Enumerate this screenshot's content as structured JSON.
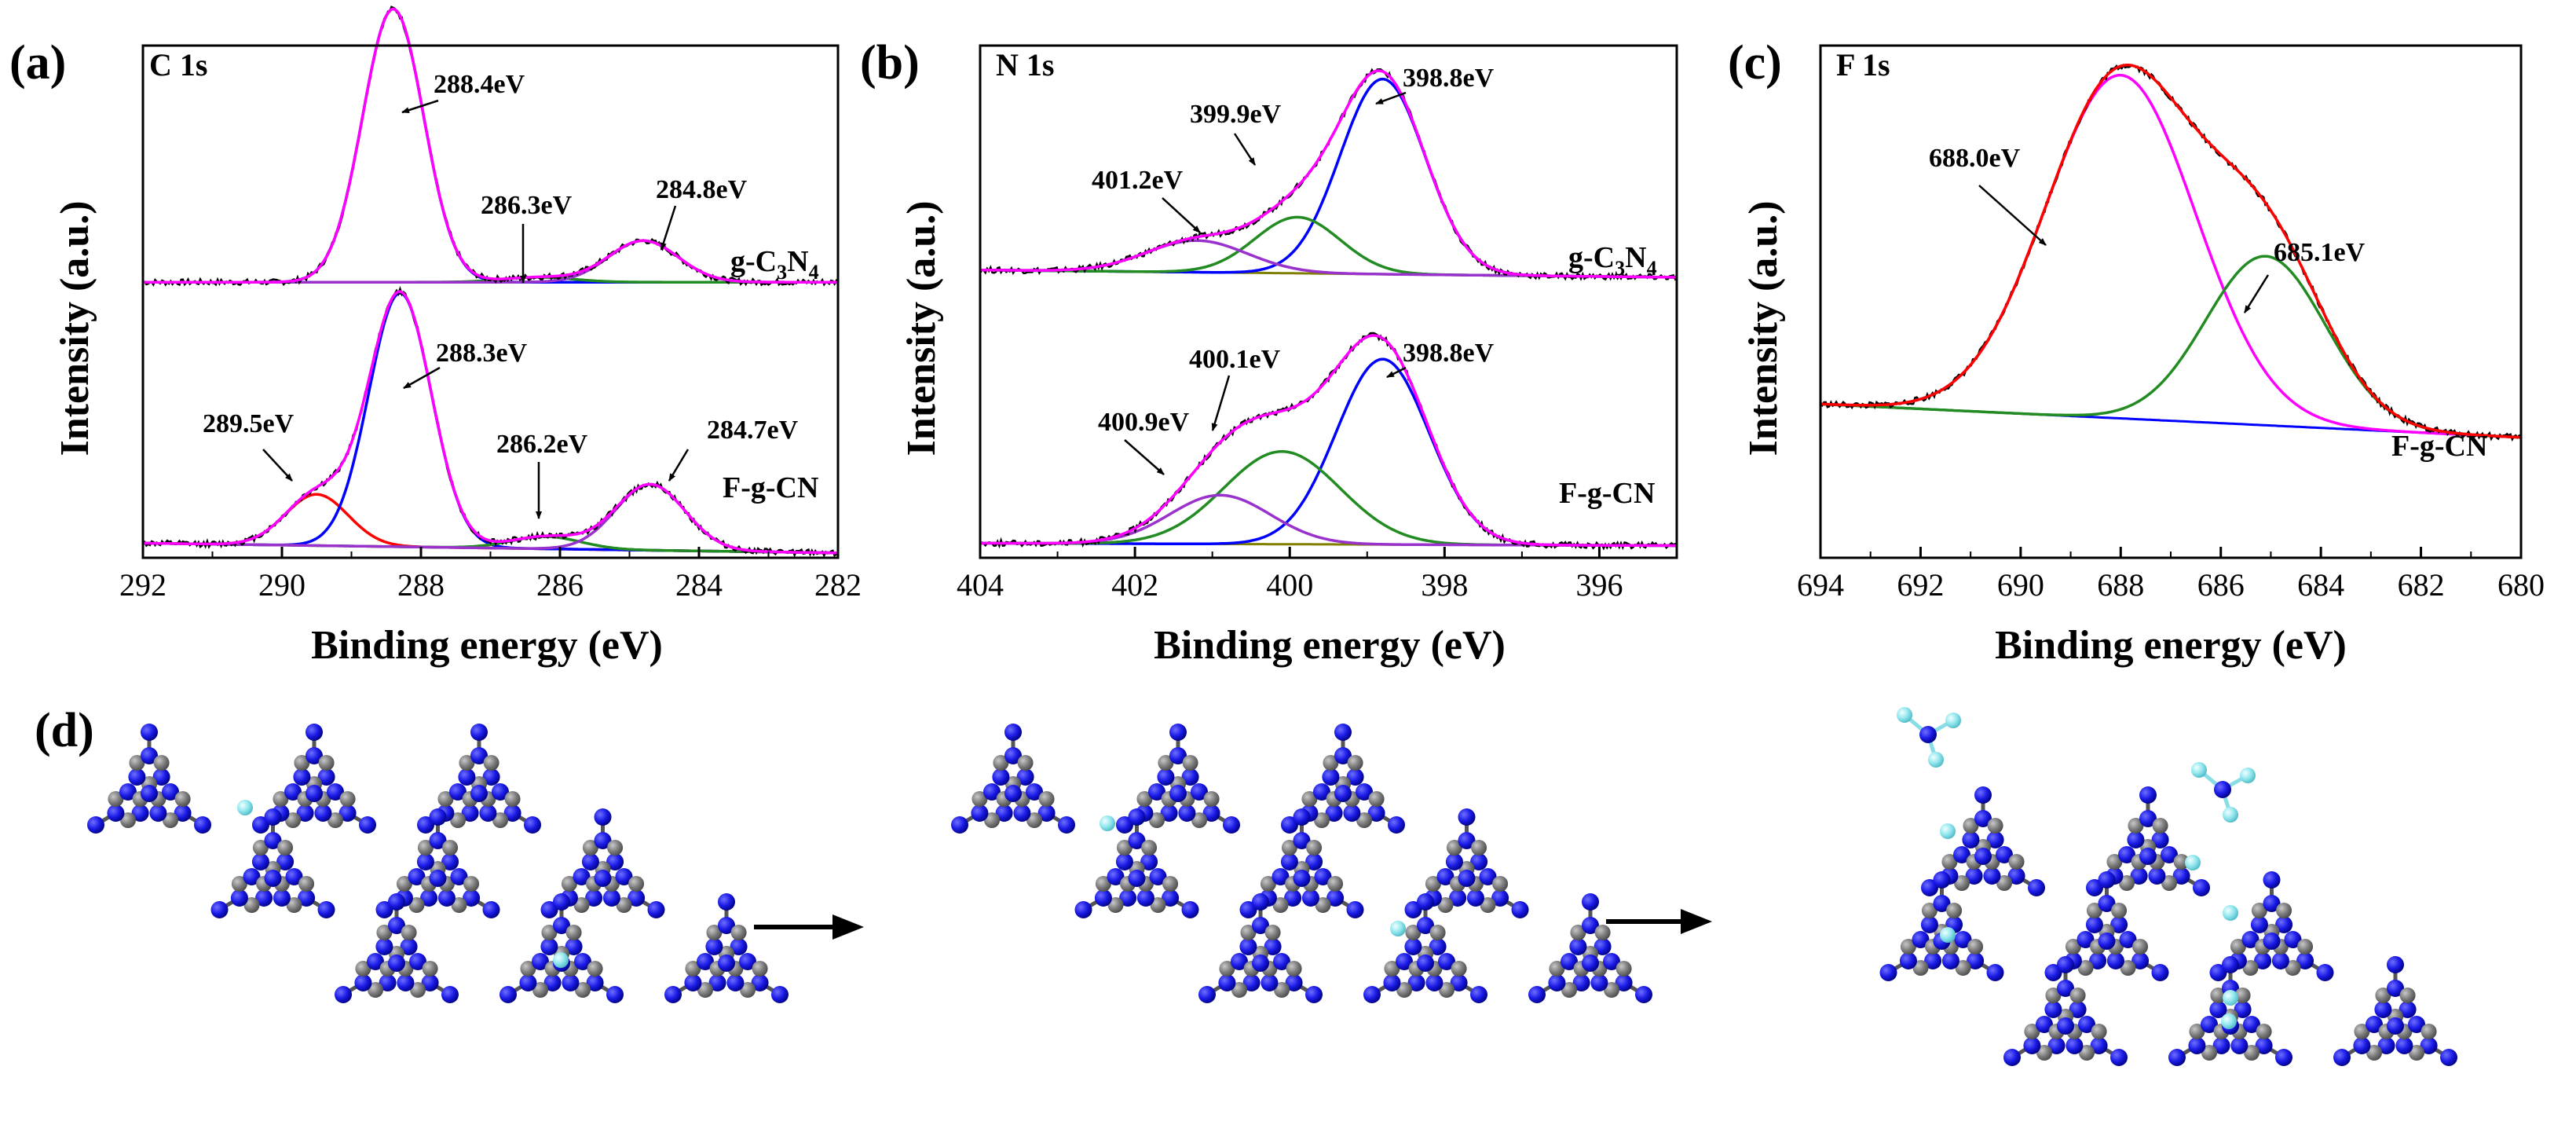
{
  "figure": {
    "panel_d_label": "(d)"
  },
  "chart_data": [
    {
      "type": "line",
      "panel_label": "(a)",
      "title": "C 1s",
      "xlabel": "Binding energy (eV)",
      "ylabel": "Intensity (a.u.)",
      "xlim": [
        292,
        282
      ],
      "xticks": [
        "292",
        "290",
        "288",
        "286",
        "284",
        "282"
      ],
      "colors": {
        "raw": "#000000",
        "envelope": "#ff00ff",
        "baseline": "#228b22"
      },
      "spectra": [
        {
          "sample": "g-C3N4",
          "sample_label": {
            "prefix": "g-C",
            "sub1": "3",
            "mid": "N",
            "sub2": "4"
          },
          "offset": 0.565,
          "baseline": {
            "from": 0.0,
            "to": 0.0
          },
          "components": [
            {
              "center": 288.4,
              "amp": 0.56,
              "sigma": 0.44,
              "color": "#0000ff",
              "label": "288.4eV"
            },
            {
              "center": 286.3,
              "amp": 0.01,
              "sigma": 0.5,
              "color": "#228b22",
              "label": "286.3eV"
            },
            {
              "center": 284.8,
              "amp": 0.085,
              "sigma": 0.5,
              "color": "#9932cc",
              "label": "284.8eV"
            }
          ]
        },
        {
          "sample": "F-g-CN",
          "sample_label": {
            "prefix": "F-g-CN",
            "sub1": "",
            "mid": "",
            "sub2": ""
          },
          "offset": 0.02,
          "baseline": {
            "from": 0.01,
            "to": -0.01
          },
          "components": [
            {
              "center": 289.5,
              "amp": 0.105,
              "sigma": 0.45,
              "color": "#ff0000",
              "label": "289.5eV"
            },
            {
              "center": 288.3,
              "amp": 0.52,
              "sigma": 0.45,
              "color": "#0000ff",
              "label": "288.3eV"
            },
            {
              "center": 286.2,
              "amp": 0.025,
              "sigma": 0.5,
              "color": "#228b22",
              "label": "286.2eV"
            },
            {
              "center": 284.7,
              "amp": 0.135,
              "sigma": 0.5,
              "color": "#9932cc",
              "label": "284.7eV"
            }
          ]
        }
      ]
    },
    {
      "type": "line",
      "panel_label": "(b)",
      "title": "N 1s",
      "xlabel": "Binding energy (eV)",
      "ylabel": "Intensity (a.u.)",
      "xlim": [
        404,
        395
      ],
      "xticks": [
        "404",
        "402",
        "400",
        "398",
        "396"
      ],
      "colors": {
        "raw": "#000000",
        "envelope": "#ff00ff",
        "baseline": "#808000"
      },
      "spectra": [
        {
          "sample": "g-C3N4",
          "sample_label": {
            "prefix": "g-C",
            "sub1": "3",
            "mid": "N",
            "sub2": "4"
          },
          "offset": 0.58,
          "baseline": {
            "from": 0.01,
            "to": -0.005
          },
          "components": [
            {
              "center": 398.8,
              "amp": 0.4,
              "sigma": 0.55,
              "color": "#0000ff",
              "label": "398.8eV"
            },
            {
              "center": 399.9,
              "amp": 0.115,
              "sigma": 0.55,
              "color": "#228b22",
              "label": "399.9eV"
            },
            {
              "center": 401.2,
              "amp": 0.065,
              "sigma": 0.65,
              "color": "#9932cc",
              "label": "401.2eV"
            }
          ]
        },
        {
          "sample": "F-g-CN",
          "sample_label": {
            "prefix": "F-g-CN",
            "sub1": "",
            "mid": "",
            "sub2": ""
          },
          "offset": 0.03,
          "baseline": {
            "from": 0.0,
            "to": -0.005
          },
          "components": [
            {
              "center": 398.8,
              "amp": 0.38,
              "sigma": 0.6,
              "color": "#0000ff",
              "label": "398.8eV"
            },
            {
              "center": 400.1,
              "amp": 0.19,
              "sigma": 0.75,
              "color": "#228b22",
              "label": "400.1eV"
            },
            {
              "center": 400.9,
              "amp": 0.1,
              "sigma": 0.65,
              "color": "#9932cc",
              "label": "400.9eV"
            }
          ]
        }
      ]
    },
    {
      "type": "line",
      "panel_label": "(c)",
      "title": "F 1s",
      "xlabel": "Binding energy (eV)",
      "ylabel": "Intensity (a.u.)",
      "xlim": [
        694,
        680
      ],
      "xticks": [
        "694",
        "692",
        "690",
        "688",
        "686",
        "684",
        "682",
        "680"
      ],
      "colors": {
        "raw": "#000000",
        "envelope": "#ff0000",
        "baseline": "#0000ff"
      },
      "spectra": [
        {
          "sample": "F-g-CN",
          "sample_label": {
            "prefix": "F-g-CN",
            "sub1": "",
            "mid": "",
            "sub2": ""
          },
          "offset": 0.0,
          "baseline": {
            "from": 0.3,
            "to": 0.235
          },
          "components": [
            {
              "center": 688.0,
              "amp": 0.67,
              "sigma": 1.5,
              "color": "#ff00ff",
              "label": "688.0eV"
            },
            {
              "center": 685.1,
              "amp": 0.33,
              "sigma": 1.2,
              "color": "#228b22",
              "label": "685.1eV"
            }
          ]
        }
      ]
    }
  ]
}
